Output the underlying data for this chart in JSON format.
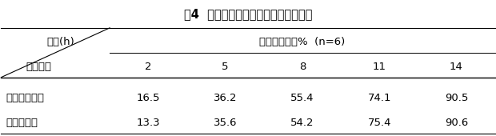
{
  "title": "表4  外薄膜包衣对释放度影响的的研究",
  "header_row1_left": "时间(h)",
  "header_row1_right": "平均释放度，%  (n=6)",
  "header_row2_left": "样品名称",
  "time_cols": [
    "2",
    "5",
    "8",
    "11",
    "14"
  ],
  "rows": [
    {
      "name": "未包外薄膜衣",
      "values": [
        "16.5",
        "36.2",
        "55.4",
        "74.1",
        "90.5"
      ]
    },
    {
      "name": "包外薄膜衣",
      "values": [
        "13.3",
        "35.6",
        "54.2",
        "75.4",
        "90.6"
      ]
    }
  ],
  "bg_color": "#ffffff",
  "text_color": "#000000",
  "title_fontsize": 10.5,
  "body_fontsize": 9.5,
  "header_fontsize": 9.5
}
